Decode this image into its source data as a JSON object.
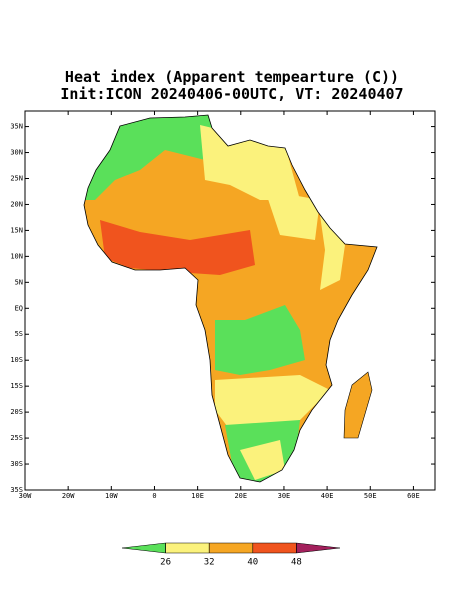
{
  "title": [
    "Heat index (Apparent tempearture (C))",
    "Init:ICON 20240406-00UTC, VT: 20240407"
  ],
  "map": {
    "xlim": [
      -30,
      65
    ],
    "ylim": [
      -35,
      38
    ],
    "xticks": [
      {
        "value": -30,
        "label": "30W"
      },
      {
        "value": -20,
        "label": "20W"
      },
      {
        "value": -10,
        "label": "10W"
      },
      0,
      {
        "value": 10,
        "label": "10E"
      },
      {
        "value": 20,
        "label": "20E"
      },
      {
        "value": 30,
        "label": "30E"
      },
      {
        "value": 40,
        "label": "40E"
      },
      {
        "value": 50,
        "label": "50E"
      },
      {
        "value": 60,
        "label": "60E"
      }
    ],
    "yticks": [
      {
        "value": -35,
        "label": "35S"
      },
      {
        "value": -30,
        "label": "30S"
      },
      {
        "value": -25,
        "label": "25S"
      },
      {
        "value": -20,
        "label": "20S"
      },
      {
        "value": -15,
        "label": "15S"
      },
      {
        "value": -10,
        "label": "10S"
      },
      {
        "value": -5,
        "label": "5S"
      },
      {
        "value": 0,
        "label": "EQ"
      },
      {
        "value": 5,
        "label": "5N"
      },
      {
        "value": 10,
        "label": "10N"
      },
      {
        "value": 15,
        "label": "15N"
      },
      {
        "value": 20,
        "label": "20N"
      },
      {
        "value": 25,
        "label": "25N"
      },
      {
        "value": 30,
        "label": "30N"
      },
      {
        "value": 35,
        "label": "35N"
      }
    ]
  },
  "colorbar": {
    "ticks": [
      26,
      32,
      40,
      48
    ],
    "colors": [
      "#5ae05a",
      "#fbf27c",
      "#f5a623",
      "#f0541e",
      "#a3205c"
    ]
  }
}
